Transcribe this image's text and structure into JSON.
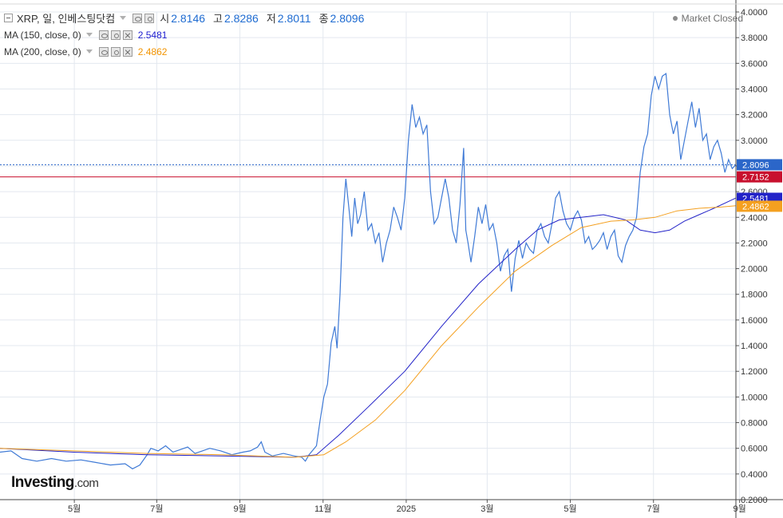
{
  "legend": {
    "symbol": "XRP, 일, 인베스팅닷컴",
    "open_label": "시",
    "open": "2.8146",
    "high_label": "고",
    "high": "2.8286",
    "low_label": "저",
    "low": "2.8011",
    "close_label": "종",
    "close": "2.8096",
    "ma150_label": "MA (150, close, 0)",
    "ma150_value": "2.5481",
    "ma200_label": "MA (200, close, 0)",
    "ma200_value": "2.4862"
  },
  "status": {
    "market": "Market Closed"
  },
  "branding": {
    "logo": "Investing",
    "logo_suffix": ".com"
  },
  "colors": {
    "price": "#3f7ad6",
    "ma150": "#2323c8",
    "ma200": "#f4a020",
    "resistance": "#c8102e",
    "last_price": "#2b66c9",
    "grid": "#e3e8ef"
  },
  "chart_data": {
    "type": "line",
    "title": "",
    "xlabel": "",
    "ylabel": "",
    "ylim": [
      0.2,
      4.0
    ],
    "grid": true,
    "y_ticks": [
      "4.0000",
      "3.8000",
      "3.6000",
      "3.4000",
      "3.2000",
      "3.0000",
      "2.8000",
      "2.6000",
      "2.4000",
      "2.2000",
      "2.0000",
      "1.8000",
      "1.6000",
      "1.4000",
      "1.2000",
      "1.0000",
      "0.8000",
      "0.6000",
      "0.4000",
      "0.2000"
    ],
    "x_ticks": [
      {
        "label": "5월",
        "t": 0.101
      },
      {
        "label": "7월",
        "t": 0.213
      },
      {
        "label": "9월",
        "t": 0.326
      },
      {
        "label": "11월",
        "t": 0.439
      },
      {
        "label": "2025",
        "t": 0.552
      },
      {
        "label": "3월",
        "t": 0.662
      },
      {
        "label": "5월",
        "t": 0.775
      },
      {
        "label": "7월",
        "t": 0.888
      },
      {
        "label": "9월",
        "t": 1.005
      }
    ],
    "horizontal_lines": [
      {
        "name": "last",
        "value": 2.8096,
        "label": "2.8096"
      },
      {
        "name": "resistance",
        "value": 2.7152,
        "label": "2.7152"
      }
    ],
    "badges": [
      {
        "series": "ma150",
        "value": 2.5481,
        "label": "2.5481"
      },
      {
        "series": "ma200",
        "value": 2.4862,
        "label": "2.4862"
      }
    ],
    "series": [
      {
        "key": "price",
        "points": [
          [
            0.0,
            0.57
          ],
          [
            0.015,
            0.58
          ],
          [
            0.03,
            0.52
          ],
          [
            0.05,
            0.5
          ],
          [
            0.07,
            0.52
          ],
          [
            0.09,
            0.5
          ],
          [
            0.11,
            0.51
          ],
          [
            0.13,
            0.49
          ],
          [
            0.15,
            0.47
          ],
          [
            0.17,
            0.48
          ],
          [
            0.18,
            0.44
          ],
          [
            0.19,
            0.47
          ],
          [
            0.2,
            0.55
          ],
          [
            0.205,
            0.6
          ],
          [
            0.215,
            0.58
          ],
          [
            0.225,
            0.62
          ],
          [
            0.235,
            0.57
          ],
          [
            0.245,
            0.59
          ],
          [
            0.255,
            0.61
          ],
          [
            0.265,
            0.56
          ],
          [
            0.275,
            0.58
          ],
          [
            0.285,
            0.6
          ],
          [
            0.3,
            0.58
          ],
          [
            0.315,
            0.55
          ],
          [
            0.33,
            0.57
          ],
          [
            0.34,
            0.58
          ],
          [
            0.35,
            0.61
          ],
          [
            0.355,
            0.65
          ],
          [
            0.36,
            0.57
          ],
          [
            0.37,
            0.54
          ],
          [
            0.385,
            0.56
          ],
          [
            0.4,
            0.54
          ],
          [
            0.41,
            0.53
          ],
          [
            0.415,
            0.5
          ],
          [
            0.42,
            0.55
          ],
          [
            0.43,
            0.62
          ],
          [
            0.435,
            0.82
          ],
          [
            0.44,
            1.0
          ],
          [
            0.445,
            1.1
          ],
          [
            0.45,
            1.42
          ],
          [
            0.455,
            1.55
          ],
          [
            0.458,
            1.38
          ],
          [
            0.462,
            1.8
          ],
          [
            0.466,
            2.4
          ],
          [
            0.47,
            2.7
          ],
          [
            0.474,
            2.48
          ],
          [
            0.478,
            2.25
          ],
          [
            0.482,
            2.55
          ],
          [
            0.486,
            2.35
          ],
          [
            0.49,
            2.42
          ],
          [
            0.495,
            2.6
          ],
          [
            0.5,
            2.3
          ],
          [
            0.505,
            2.35
          ],
          [
            0.51,
            2.2
          ],
          [
            0.515,
            2.28
          ],
          [
            0.52,
            2.05
          ],
          [
            0.525,
            2.2
          ],
          [
            0.53,
            2.3
          ],
          [
            0.535,
            2.48
          ],
          [
            0.54,
            2.4
          ],
          [
            0.545,
            2.3
          ],
          [
            0.55,
            2.55
          ],
          [
            0.555,
            3.0
          ],
          [
            0.56,
            3.28
          ],
          [
            0.565,
            3.1
          ],
          [
            0.57,
            3.18
          ],
          [
            0.575,
            3.05
          ],
          [
            0.58,
            3.12
          ],
          [
            0.585,
            2.6
          ],
          [
            0.59,
            2.35
          ],
          [
            0.595,
            2.4
          ],
          [
            0.6,
            2.55
          ],
          [
            0.605,
            2.7
          ],
          [
            0.61,
            2.55
          ],
          [
            0.615,
            2.3
          ],
          [
            0.62,
            2.2
          ],
          [
            0.625,
            2.5
          ],
          [
            0.63,
            2.94
          ],
          [
            0.633,
            2.3
          ],
          [
            0.636,
            2.2
          ],
          [
            0.64,
            2.05
          ],
          [
            0.645,
            2.25
          ],
          [
            0.65,
            2.48
          ],
          [
            0.655,
            2.35
          ],
          [
            0.66,
            2.5
          ],
          [
            0.665,
            2.3
          ],
          [
            0.67,
            2.35
          ],
          [
            0.675,
            2.2
          ],
          [
            0.68,
            1.98
          ],
          [
            0.685,
            2.1
          ],
          [
            0.69,
            2.15
          ],
          [
            0.695,
            1.82
          ],
          [
            0.7,
            2.08
          ],
          [
            0.705,
            2.22
          ],
          [
            0.71,
            2.08
          ],
          [
            0.715,
            2.2
          ],
          [
            0.72,
            2.15
          ],
          [
            0.725,
            2.12
          ],
          [
            0.73,
            2.3
          ],
          [
            0.735,
            2.35
          ],
          [
            0.74,
            2.25
          ],
          [
            0.745,
            2.2
          ],
          [
            0.75,
            2.35
          ],
          [
            0.755,
            2.55
          ],
          [
            0.76,
            2.6
          ],
          [
            0.765,
            2.45
          ],
          [
            0.77,
            2.35
          ],
          [
            0.775,
            2.3
          ],
          [
            0.78,
            2.4
          ],
          [
            0.785,
            2.45
          ],
          [
            0.79,
            2.38
          ],
          [
            0.795,
            2.2
          ],
          [
            0.8,
            2.25
          ],
          [
            0.805,
            2.15
          ],
          [
            0.81,
            2.18
          ],
          [
            0.815,
            2.22
          ],
          [
            0.82,
            2.28
          ],
          [
            0.825,
            2.15
          ],
          [
            0.83,
            2.25
          ],
          [
            0.835,
            2.3
          ],
          [
            0.84,
            2.1
          ],
          [
            0.845,
            2.05
          ],
          [
            0.85,
            2.18
          ],
          [
            0.855,
            2.25
          ],
          [
            0.86,
            2.3
          ],
          [
            0.865,
            2.4
          ],
          [
            0.87,
            2.75
          ],
          [
            0.875,
            2.95
          ],
          [
            0.88,
            3.05
          ],
          [
            0.885,
            3.35
          ],
          [
            0.89,
            3.5
          ],
          [
            0.895,
            3.4
          ],
          [
            0.9,
            3.5
          ],
          [
            0.905,
            3.52
          ],
          [
            0.91,
            3.2
          ],
          [
            0.915,
            3.05
          ],
          [
            0.92,
            3.15
          ],
          [
            0.925,
            2.85
          ],
          [
            0.93,
            3.0
          ],
          [
            0.935,
            3.15
          ],
          [
            0.94,
            3.3
          ],
          [
            0.945,
            3.1
          ],
          [
            0.95,
            3.25
          ],
          [
            0.955,
            3.0
          ],
          [
            0.96,
            3.05
          ],
          [
            0.965,
            2.85
          ],
          [
            0.97,
            2.95
          ],
          [
            0.975,
            3.0
          ],
          [
            0.98,
            2.9
          ],
          [
            0.985,
            2.75
          ],
          [
            0.99,
            2.85
          ],
          [
            0.995,
            2.78
          ],
          [
            1.0,
            2.81
          ]
        ]
      },
      {
        "key": "ma150",
        "points": [
          [
            0.0,
            0.6
          ],
          [
            0.1,
            0.57
          ],
          [
            0.2,
            0.55
          ],
          [
            0.3,
            0.54
          ],
          [
            0.4,
            0.53
          ],
          [
            0.43,
            0.55
          ],
          [
            0.46,
            0.7
          ],
          [
            0.5,
            0.92
          ],
          [
            0.55,
            1.2
          ],
          [
            0.6,
            1.55
          ],
          [
            0.65,
            1.88
          ],
          [
            0.7,
            2.15
          ],
          [
            0.73,
            2.3
          ],
          [
            0.76,
            2.38
          ],
          [
            0.79,
            2.4
          ],
          [
            0.82,
            2.42
          ],
          [
            0.85,
            2.38
          ],
          [
            0.87,
            2.3
          ],
          [
            0.89,
            2.28
          ],
          [
            0.91,
            2.3
          ],
          [
            0.93,
            2.37
          ],
          [
            0.95,
            2.42
          ],
          [
            0.97,
            2.47
          ],
          [
            1.0,
            2.55
          ]
        ]
      },
      {
        "key": "ma200",
        "points": [
          [
            0.0,
            0.6
          ],
          [
            0.1,
            0.58
          ],
          [
            0.2,
            0.56
          ],
          [
            0.3,
            0.55
          ],
          [
            0.4,
            0.53
          ],
          [
            0.44,
            0.55
          ],
          [
            0.47,
            0.65
          ],
          [
            0.51,
            0.82
          ],
          [
            0.55,
            1.05
          ],
          [
            0.6,
            1.4
          ],
          [
            0.65,
            1.7
          ],
          [
            0.7,
            1.98
          ],
          [
            0.75,
            2.18
          ],
          [
            0.79,
            2.32
          ],
          [
            0.83,
            2.37
          ],
          [
            0.86,
            2.38
          ],
          [
            0.89,
            2.4
          ],
          [
            0.92,
            2.45
          ],
          [
            0.95,
            2.47
          ],
          [
            0.98,
            2.48
          ],
          [
            1.0,
            2.49
          ]
        ]
      }
    ]
  }
}
